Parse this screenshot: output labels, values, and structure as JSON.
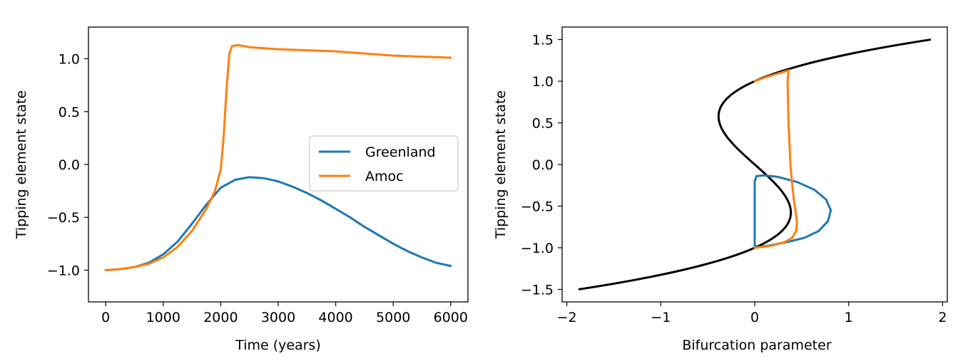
{
  "chart_data": [
    {
      "type": "line",
      "xlabel": "Time (years)",
      "ylabel": "Tipping element state",
      "xlim": [
        -300,
        6300
      ],
      "ylim": [
        -1.3,
        1.3
      ],
      "xticks": [
        0,
        1000,
        2000,
        3000,
        4000,
        5000,
        6000
      ],
      "xtick_labels": [
        "0",
        "1000",
        "2000",
        "3000",
        "4000",
        "5000",
        "6000"
      ],
      "yticks": [
        -1.0,
        -0.5,
        0.0,
        0.5,
        1.0
      ],
      "ytick_labels": [
        "−1.0",
        "−0.5",
        "0.0",
        "0.5",
        "1.0"
      ],
      "grid": false,
      "legend": {
        "placement": "center-right",
        "entries": [
          "Greenland",
          "Amoc"
        ]
      },
      "series": [
        {
          "name": "Greenland",
          "color": "#1f77b4",
          "x": [
            0,
            250,
            500,
            750,
            1000,
            1250,
            1500,
            1750,
            2000,
            2250,
            2500,
            2750,
            3000,
            3250,
            3500,
            3750,
            4000,
            4250,
            4500,
            4750,
            5000,
            5250,
            5500,
            5750,
            6000
          ],
          "y": [
            -1.0,
            -0.99,
            -0.97,
            -0.93,
            -0.85,
            -0.73,
            -0.56,
            -0.38,
            -0.22,
            -0.145,
            -0.12,
            -0.13,
            -0.16,
            -0.21,
            -0.27,
            -0.34,
            -0.42,
            -0.5,
            -0.59,
            -0.67,
            -0.75,
            -0.82,
            -0.88,
            -0.93,
            -0.96
          ]
        },
        {
          "name": "Amoc",
          "color": "#ff7f0e",
          "x": [
            0,
            250,
            500,
            750,
            1000,
            1250,
            1500,
            1750,
            1900,
            2000,
            2050,
            2100,
            2150,
            2200,
            2300,
            2500,
            3000,
            3500,
            4000,
            4500,
            5000,
            5500,
            6000
          ],
          "y": [
            -1.0,
            -0.99,
            -0.97,
            -0.94,
            -0.88,
            -0.78,
            -0.63,
            -0.42,
            -0.25,
            -0.05,
            0.25,
            0.7,
            1.05,
            1.12,
            1.13,
            1.11,
            1.09,
            1.08,
            1.07,
            1.05,
            1.03,
            1.02,
            1.01
          ]
        }
      ]
    },
    {
      "type": "line",
      "xlabel": "Bifurcation parameter",
      "ylabel": "Tipping element state",
      "xlim": [
        -2.05,
        2.05
      ],
      "ylim": [
        -1.65,
        1.65
      ],
      "xticks": [
        -2,
        -1,
        0,
        1,
        2
      ],
      "xtick_labels": [
        "−2",
        "−1",
        "0",
        "1",
        "2"
      ],
      "yticks": [
        -1.5,
        -1.0,
        -0.5,
        0.0,
        0.5,
        1.0,
        1.5
      ],
      "ytick_labels": [
        "−1.5",
        "−1.0",
        "−0.5",
        "0.0",
        "0.5",
        "1.0",
        "1.5"
      ],
      "grid": false,
      "equilibrium_curve": {
        "color": "#000000",
        "relation": "x = y^3 - y",
        "y_range": [
          -1.5,
          1.5
        ]
      },
      "series": [
        {
          "name": "Greenland",
          "color": "#1f77b4",
          "x": [
            0.0,
            0.0,
            0.0,
            0.02,
            0.1,
            0.25,
            0.45,
            0.63,
            0.76,
            0.81,
            0.78,
            0.68,
            0.53,
            0.35,
            0.17,
            0.05,
            0.0
          ],
          "y": [
            -0.98,
            -0.6,
            -0.2,
            -0.14,
            -0.13,
            -0.15,
            -0.21,
            -0.3,
            -0.42,
            -0.55,
            -0.68,
            -0.8,
            -0.88,
            -0.93,
            -0.97,
            -0.99,
            -1.0
          ]
        },
        {
          "name": "Amoc",
          "color": "#ff7f0e",
          "x": [
            0.0,
            0.15,
            0.3,
            0.36,
            0.35,
            0.36,
            0.38,
            0.4,
            0.42,
            0.44,
            0.45,
            0.44,
            0.4,
            0.32,
            0.2,
            0.08,
            0.0
          ],
          "y": [
            1.0,
            1.06,
            1.11,
            1.13,
            1.0,
            0.5,
            0.0,
            -0.25,
            -0.45,
            -0.6,
            -0.7,
            -0.8,
            -0.88,
            -0.93,
            -0.97,
            -0.99,
            -1.0
          ]
        }
      ]
    }
  ]
}
